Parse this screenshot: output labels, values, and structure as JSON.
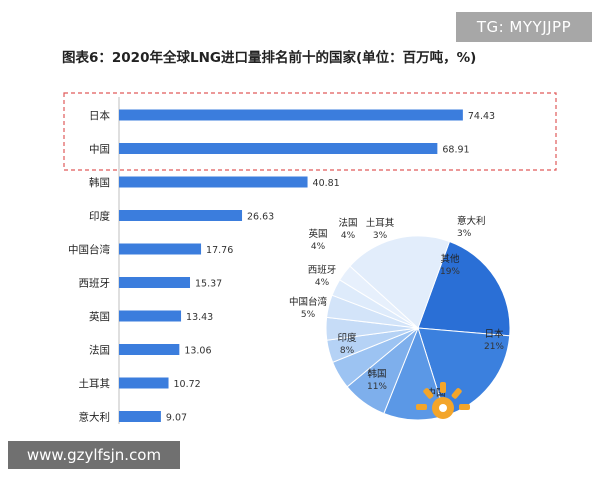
{
  "overlay": {
    "tag_text": "TG: MYYJJPP",
    "footer_text": "www.gzylfsjn.com"
  },
  "chart_data": [
    {
      "type": "bar",
      "orientation": "horizontal",
      "title": "图表6：2020年全球LNG进口量排名前十的国家(单位：百万吨，%)",
      "categories": [
        "日本",
        "中国",
        "韩国",
        "印度",
        "中国台湾",
        "西班牙",
        "英国",
        "法国",
        "土耳其",
        "意大利"
      ],
      "values": [
        74.43,
        68.91,
        40.81,
        26.63,
        17.76,
        15.37,
        13.43,
        13.06,
        10.72,
        9.07
      ],
      "value_labels": [
        "74.43",
        "68.91",
        "40.81",
        "26.63",
        "17.76",
        "15.37",
        "13.43",
        "13.06",
        "10.72",
        "9.07"
      ],
      "xlim": [
        0,
        90
      ],
      "color": "#3b7ddd",
      "highlight": [
        "日本",
        "中国"
      ],
      "highlight_color": "#e05a5a",
      "grid": false
    },
    {
      "type": "pie",
      "slices": [
        {
          "label": "日本",
          "value": 21,
          "text": "21%",
          "color": "#2a6fd6"
        },
        {
          "label": "中国",
          "value": 19,
          "text": "",
          "color": "#3b80de"
        },
        {
          "label": "韩国",
          "value": 11,
          "text": "11%",
          "color": "#5b98e6"
        },
        {
          "label": "印度",
          "value": 8,
          "text": "8%",
          "color": "#7eafec"
        },
        {
          "label": "中国台湾",
          "value": 5,
          "text": "5%",
          "color": "#9cc3f2"
        },
        {
          "label": "西班牙",
          "value": 4,
          "text": "4%",
          "color": "#b5d2f5"
        },
        {
          "label": "英国",
          "value": 4,
          "text": "4%",
          "color": "#c6dcf7"
        },
        {
          "label": "法国",
          "value": 4,
          "text": "4%",
          "color": "#d3e4f9"
        },
        {
          "label": "土耳其",
          "value": 3,
          "text": "3%",
          "color": "#deebfb"
        },
        {
          "label": "意大利",
          "value": 3,
          "text": "3%",
          "color": "#e7f0fc"
        },
        {
          "label": "其他",
          "value": 19,
          "text": "19%",
          "color": "#e2edfb"
        }
      ]
    }
  ]
}
